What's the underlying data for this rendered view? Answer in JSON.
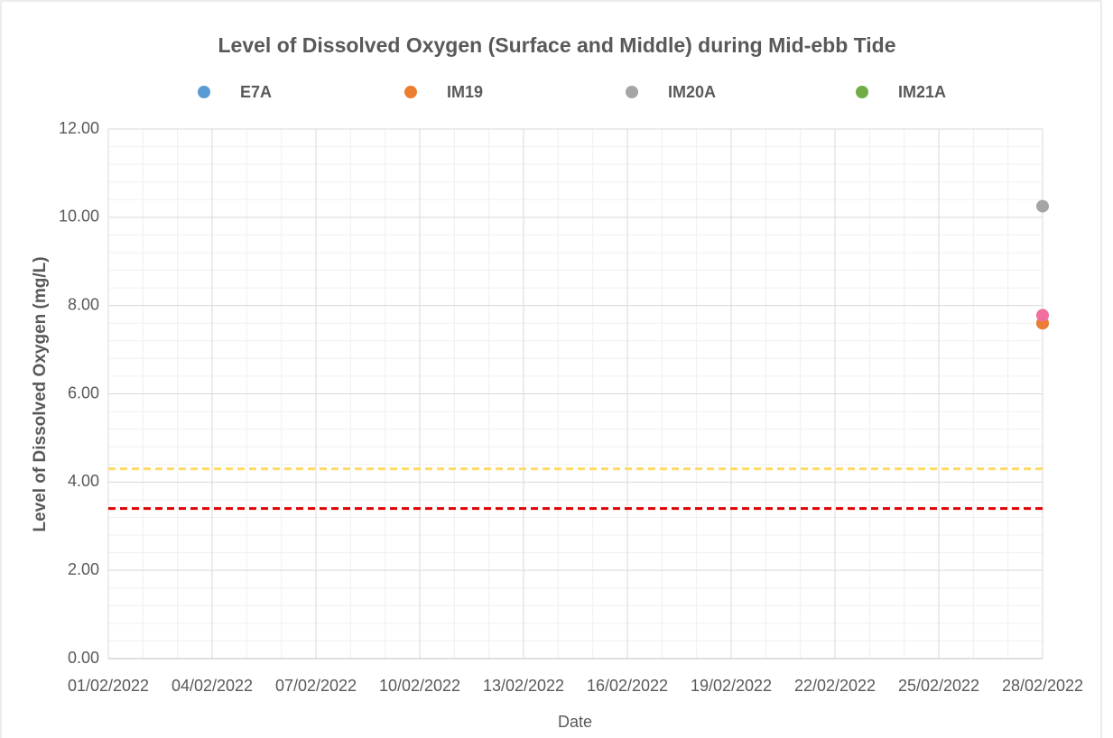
{
  "chart_data": {
    "type": "scatter",
    "title": "Level of Dissolved Oxygen (Surface and Middle) during Mid-ebb Tide",
    "x_label": "Date",
    "y_label": "Level of Dissolved Oxygen (mg/L)",
    "x": [
      "28/02/2022"
    ],
    "series": [
      {
        "name": "E7A",
        "color": "#5b9bd5",
        "values": [
          7.6
        ]
      },
      {
        "name": "IM19",
        "color": "#ed7d31",
        "values": [
          7.6
        ]
      },
      {
        "name": "IM20A",
        "color": "#a5a5a5",
        "values": [
          10.25
        ]
      },
      {
        "name": "IM21A",
        "color": "#70ad47",
        "values": [
          null
        ]
      },
      {
        "color": "#f06ea0",
        "values": [
          7.78
        ]
      }
    ],
    "reference_lines": [
      {
        "value": 4.3,
        "color": "#ffd966"
      },
      {
        "value": 3.4,
        "color": "#e00000"
      }
    ],
    "xlim": [
      "01/02/2022",
      "28/02/2022"
    ],
    "xticks": [
      "01/02/2022",
      "04/02/2022",
      "07/02/2022",
      "10/02/2022",
      "13/02/2022",
      "16/02/2022",
      "19/02/2022",
      "22/02/2022",
      "25/02/2022",
      "28/02/2022"
    ],
    "ylim": [
      0,
      12
    ],
    "yticks": [
      {
        "value": 0,
        "label": "0.00"
      },
      {
        "value": 2,
        "label": "2.00"
      },
      {
        "value": 4,
        "label": "4.00"
      },
      {
        "value": 6,
        "label": "6.00"
      },
      {
        "value": 8,
        "label": "8.00"
      },
      {
        "value": 10,
        "label": "10.00"
      },
      {
        "value": 12,
        "label": "12.00"
      }
    ],
    "grid": true,
    "minor_grid": true,
    "legend": "top"
  }
}
